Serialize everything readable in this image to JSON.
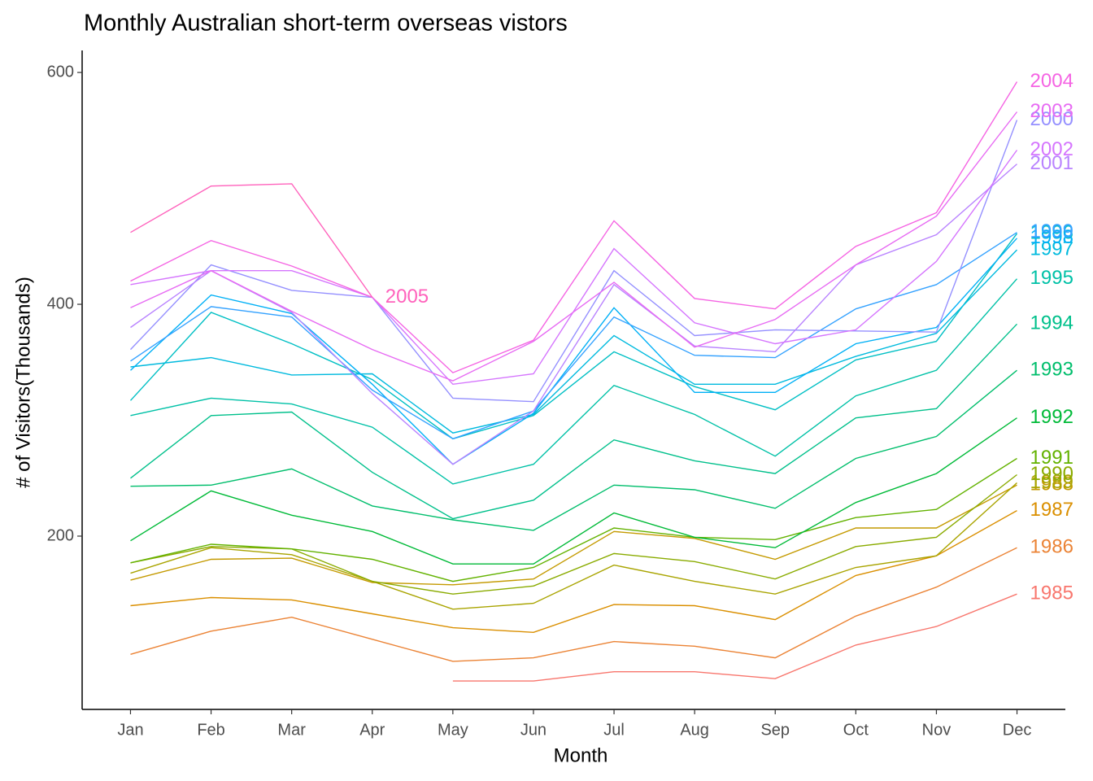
{
  "chart_data": {
    "type": "line",
    "title": "Monthly Australian short-term overseas vistors",
    "x_label": "Month",
    "y_label": "# of Visitors(Thousands)",
    "categories": [
      "Jan",
      "Feb",
      "Mar",
      "Apr",
      "May",
      "Jun",
      "Jul",
      "Aug",
      "Sep",
      "Oct",
      "Nov",
      "Dec"
    ],
    "ylim": [
      50.5,
      619
    ],
    "yticks": [
      200,
      400,
      600
    ],
    "grid": false,
    "series": [
      {
        "name": "1985",
        "color": "#F8766D",
        "values": [
          null,
          null,
          null,
          null,
          75,
          75,
          83,
          83,
          77,
          106,
          122,
          150
        ]
      },
      {
        "name": "1986",
        "color": "#EB8335",
        "values": [
          98,
          118,
          130,
          111,
          92,
          95,
          109,
          105,
          95,
          131,
          156,
          190
        ]
      },
      {
        "name": "1987",
        "color": "#DA8F00",
        "values": [
          140,
          147,
          145,
          133,
          121,
          117,
          141,
          140,
          128,
          166,
          183,
          222
        ]
      },
      {
        "name": "1988",
        "color": "#C49A00",
        "values": [
          162,
          180,
          181,
          160,
          158,
          163,
          204,
          198,
          180,
          207,
          207,
          244
        ]
      },
      {
        "name": "1989",
        "color": "#A9A400",
        "values": [
          168,
          190,
          184,
          161,
          137,
          142,
          175,
          161,
          150,
          173,
          183,
          246
        ]
      },
      {
        "name": "1990",
        "color": "#8AAB00",
        "values": [
          177,
          191,
          189,
          161,
          150,
          157,
          185,
          178,
          163,
          191,
          199,
          253
        ]
      },
      {
        "name": "1991",
        "color": "#63B200",
        "values": [
          177,
          193,
          189,
          180,
          161,
          173,
          207,
          199,
          197,
          216,
          223,
          267
        ]
      },
      {
        "name": "1992",
        "color": "#00BA38",
        "values": [
          196,
          239,
          218,
          204,
          176,
          176,
          220,
          199,
          190,
          229,
          254,
          302
        ]
      },
      {
        "name": "1993",
        "color": "#00BE6C",
        "values": [
          243,
          244,
          258,
          226,
          214,
          205,
          244,
          240,
          224,
          267,
          286,
          343
        ]
      },
      {
        "name": "1994",
        "color": "#00C08B",
        "values": [
          250,
          304,
          307,
          255,
          215,
          231,
          283,
          265,
          254,
          302,
          310,
          383
        ]
      },
      {
        "name": "1995",
        "color": "#00C1A7",
        "values": [
          304,
          319,
          314,
          294,
          245,
          262,
          330,
          305,
          269,
          321,
          343,
          422
        ]
      },
      {
        "name": "1996",
        "color": "#00BFC4",
        "values": [
          317,
          393,
          366,
          335,
          284,
          304,
          359,
          329,
          309,
          352,
          368,
          461
        ]
      },
      {
        "name": "1997",
        "color": "#00BADE",
        "values": [
          346,
          354,
          339,
          340,
          289,
          305,
          373,
          331,
          331,
          355,
          375,
          447
        ]
      },
      {
        "name": "1998",
        "color": "#00B0F6",
        "values": [
          343,
          408,
          392,
          331,
          262,
          306,
          397,
          324,
          324,
          366,
          380,
          457
        ]
      },
      {
        "name": "1999",
        "color": "#35A2FF",
        "values": [
          351,
          398,
          389,
          326,
          284,
          308,
          389,
          356,
          354,
          396,
          417,
          462
        ]
      },
      {
        "name": "2000",
        "color": "#9590FF",
        "values": [
          361,
          434,
          412,
          406,
          319,
          316,
          429,
          373,
          378,
          377,
          376,
          559
        ]
      },
      {
        "name": "2001",
        "color": "#B983FF",
        "values": [
          380,
          429,
          393,
          323,
          262,
          308,
          417,
          364,
          359,
          434,
          460,
          521
        ]
      },
      {
        "name": "2002",
        "color": "#D575FE",
        "values": [
          417,
          429,
          429,
          406,
          331,
          340,
          448,
          384,
          366,
          378,
          437,
          533
        ]
      },
      {
        "name": "2003",
        "color": "#E76BF3",
        "values": [
          397,
          429,
          394,
          361,
          334,
          368,
          419,
          363,
          387,
          434,
          476,
          566
        ]
      },
      {
        "name": "2004",
        "color": "#F564E3",
        "values": [
          420,
          455,
          433,
          406,
          341,
          369,
          472,
          405,
          396,
          450,
          479,
          592
        ]
      },
      {
        "name": "2005",
        "color": "#FF62BC",
        "values": [
          462,
          502,
          504,
          406,
          null,
          null,
          null,
          null,
          null,
          null,
          null,
          null
        ]
      }
    ]
  }
}
